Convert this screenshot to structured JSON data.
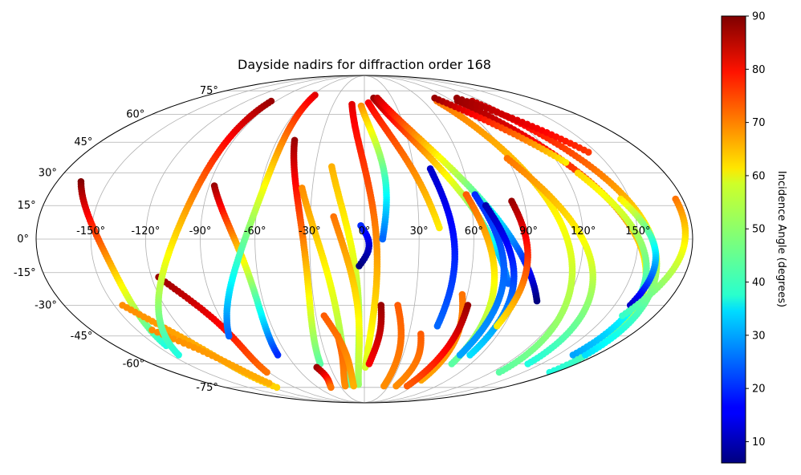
{
  "chart_data": {
    "type": "scatter",
    "projection": "mollweide",
    "title": "Dayside nadirs for diffraction order 168",
    "xlabel": "",
    "ylabel": "",
    "grid": true,
    "colormap": "jet",
    "lon_ticks": [
      -150,
      -120,
      -90,
      -60,
      -30,
      0,
      30,
      60,
      90,
      120,
      150
    ],
    "lon_tick_labels": [
      "-150°",
      "-120°",
      "-90°",
      "-60°",
      "-30°",
      "0°",
      "30°",
      "60°",
      "90°",
      "120°",
      "150°"
    ],
    "lat_ticks": [
      75,
      60,
      45,
      30,
      15,
      0,
      -15,
      -30,
      -45,
      -60,
      -75
    ],
    "lat_tick_labels": [
      "75°",
      "60°",
      "45°",
      "30°",
      "15°",
      "0°",
      "-15°",
      "-30°",
      "-45°",
      "-60°",
      "-75°"
    ],
    "colorbar": {
      "label": "Incidence Angle (degrees)",
      "range": [
        6,
        90
      ],
      "ticks": [
        10,
        20,
        30,
        40,
        50,
        60,
        70,
        80,
        90
      ],
      "tick_labels": [
        "10",
        "20",
        "30",
        "40",
        "50",
        "60",
        "70",
        "80",
        "90"
      ]
    },
    "tracks": [
      {
        "lon_start": -166,
        "lon_slope": 0.3,
        "lon_curve": 14,
        "lat_start": 26,
        "lat_end": -50,
        "inc_start": 90,
        "inc_end": 40
      },
      {
        "lon_start": -145,
        "lon_slope": 0.7,
        "lon_curve": 10,
        "lat_start": -30,
        "lat_end": -75,
        "inc_start": 68,
        "inc_end": 62
      },
      {
        "lon_start": -140,
        "lon_slope": 1.0,
        "lon_curve": 8,
        "lat_start": -42,
        "lat_end": -72,
        "inc_start": 68,
        "inc_end": 65
      },
      {
        "lon_start": -116,
        "lon_slope": 0.5,
        "lon_curve": 12,
        "lat_start": -17,
        "lat_end": -65,
        "inc_start": 88,
        "inc_end": 70
      },
      {
        "lon_start": -95,
        "lon_slope": -0.4,
        "lon_curve": 18,
        "lat_start": 68,
        "lat_end": -55,
        "inc_start": 88,
        "inc_end": 40
      },
      {
        "lon_start": -87,
        "lon_slope": 0.25,
        "lon_curve": 12,
        "lat_start": 24,
        "lat_end": -55,
        "inc_start": 88,
        "inc_end": 20
      },
      {
        "lon_start": -57,
        "lon_slope": -0.3,
        "lon_curve": 14,
        "lat_start": 72,
        "lat_end": -45,
        "inc_start": 82,
        "inc_end": 25
      },
      {
        "lon_start": -48,
        "lon_slope": 0.1,
        "lon_curve": 10,
        "lat_start": 46,
        "lat_end": -60,
        "inc_start": 88,
        "inc_end": 45
      },
      {
        "lon_start": -36,
        "lon_slope": 0.2,
        "lon_curve": 8,
        "lat_start": 23,
        "lat_end": -73,
        "inc_start": 68,
        "inc_end": 45
      },
      {
        "lon_start": -20,
        "lon_slope": 0.15,
        "lon_curve": 8,
        "lat_start": 33,
        "lat_end": -64,
        "inc_start": 65,
        "inc_end": 45
      },
      {
        "lon_start": -17,
        "lon_slope": 0.12,
        "lon_curve": 8,
        "lat_start": 10,
        "lat_end": -73,
        "inc_start": 70,
        "inc_end": 50
      },
      {
        "lon_start": -12,
        "lon_slope": 0.1,
        "lon_curve": 12,
        "lat_start": 66,
        "lat_end": -62,
        "inc_start": 82,
        "inc_end": 55
      },
      {
        "lon_start": -3,
        "lon_slope": 0.2,
        "lon_curve": 8,
        "lat_start": 65,
        "lat_end": 0,
        "inc_start": 68,
        "inc_end": 25
      },
      {
        "lon_start": -2,
        "lon_slope": -0.05,
        "lon_curve": 5,
        "lat_start": 6,
        "lat_end": -12,
        "inc_start": 20,
        "inc_end": 6
      },
      {
        "lon_start": 4,
        "lon_slope": 0.6,
        "lon_curve": 4,
        "lat_start": 67,
        "lat_end": 5,
        "inc_start": 80,
        "inc_end": 60
      },
      {
        "lon_start": 10,
        "lon_slope": 0.8,
        "lon_curve": 6,
        "lat_start": 70,
        "lat_end": -20,
        "inc_start": 88,
        "inc_end": 25
      },
      {
        "lon_start": 14,
        "lon_slope": 0.9,
        "lon_curve": 5,
        "lat_start": 70,
        "lat_end": -28,
        "inc_start": 85,
        "inc_end": 6
      },
      {
        "lon_start": 40,
        "lon_slope": 0.1,
        "lon_curve": 6,
        "lat_start": 32,
        "lat_end": -40,
        "inc_start": 12,
        "inc_end": 25
      },
      {
        "lon_start": 58,
        "lon_slope": 0.2,
        "lon_curve": 8,
        "lat_start": 20,
        "lat_end": -60,
        "inc_start": 72,
        "inc_end": 45
      },
      {
        "lon_start": 63,
        "lon_slope": 0.15,
        "lon_curve": 10,
        "lat_start": 20,
        "lat_end": -55,
        "inc_start": 20,
        "inc_end": 30
      },
      {
        "lon_start": 68,
        "lon_slope": 0.2,
        "lon_curve": 10,
        "lat_start": 15,
        "lat_end": -55,
        "inc_start": 10,
        "inc_end": 35
      },
      {
        "lon_start": 83,
        "lon_slope": 0.05,
        "lon_curve": 6,
        "lat_start": 17,
        "lat_end": -40,
        "inc_start": 88,
        "inc_end": 60
      },
      {
        "lon_start": 74,
        "lon_slope": 0.4,
        "lon_curve": 10,
        "lat_start": 68,
        "lat_end": -65,
        "inc_start": 70,
        "inc_end": 45
      },
      {
        "lon_start": 90,
        "lon_slope": 0.5,
        "lon_curve": 12,
        "lat_start": 37,
        "lat_end": -60,
        "inc_start": 70,
        "inc_end": 40
      },
      {
        "lon_start": 95,
        "lon_slope": 0.6,
        "lon_curve": 14,
        "lat_start": 68,
        "lat_end": -65,
        "inc_start": 88,
        "inc_end": 40
      },
      {
        "lon_start": 110,
        "lon_slope": 0.5,
        "lon_curve": 14,
        "lat_start": 68,
        "lat_end": -55,
        "inc_start": 85,
        "inc_end": 35
      },
      {
        "lon_start": 128,
        "lon_slope": 0.4,
        "lon_curve": 12,
        "lat_start": 30,
        "lat_end": -55,
        "inc_start": 62,
        "inc_end": 30
      },
      {
        "lon_start": 145,
        "lon_slope": 0.3,
        "lon_curve": 8,
        "lat_start": 18,
        "lat_end": -30,
        "inc_start": 60,
        "inc_end": 12
      },
      {
        "lon_start": 176,
        "lon_slope": -0.3,
        "lon_curve": 6,
        "lat_start": 18,
        "lat_end": -35,
        "inc_start": 70,
        "inc_end": 42
      },
      {
        "lon_start": 76,
        "lon_slope": 1.4,
        "lon_curve": 2,
        "lat_start": 70,
        "lat_end": 35,
        "inc_start": 88,
        "inc_end": 60
      },
      {
        "lon_start": 100,
        "lon_slope": 1.5,
        "lon_curve": 2,
        "lat_start": 70,
        "lat_end": 40,
        "inc_start": 88,
        "inc_end": 75
      },
      {
        "lon_start": -42,
        "lon_slope": -0.1,
        "lon_curve": 4,
        "lat_start": -62,
        "lat_end": -75,
        "inc_start": 88,
        "inc_end": 70
      },
      {
        "lon_start": -18,
        "lon_slope": -0.2,
        "lon_curve": 3,
        "lat_start": -45,
        "lat_end": -74,
        "inc_start": 72,
        "inc_end": 68
      },
      {
        "lon_start": -25,
        "lon_slope": 0.3,
        "lon_curve": 5,
        "lat_start": -35,
        "lat_end": -74,
        "inc_start": 72,
        "inc_end": 65
      },
      {
        "lon_start": 10,
        "lon_slope": -0.2,
        "lon_curve": 3,
        "lat_start": -30,
        "lat_end": -60,
        "inc_start": 88,
        "inc_end": 80
      },
      {
        "lon_start": 20,
        "lon_slope": 0.1,
        "lon_curve": 4,
        "lat_start": -30,
        "lat_end": -74,
        "inc_start": 72,
        "inc_end": 68
      },
      {
        "lon_start": 38,
        "lon_slope": 0.05,
        "lon_curve": 4,
        "lat_start": -44,
        "lat_end": -74,
        "inc_start": 72,
        "inc_end": 68
      },
      {
        "lon_start": 57,
        "lon_slope": 0.1,
        "lon_curve": 4,
        "lat_start": -25,
        "lat_end": -70,
        "inc_start": 70,
        "inc_end": 66
      },
      {
        "lon_start": 62,
        "lon_slope": -0.2,
        "lon_curve": 3,
        "lat_start": -30,
        "lat_end": -74,
        "inc_start": 88,
        "inc_end": 72
      }
    ]
  }
}
